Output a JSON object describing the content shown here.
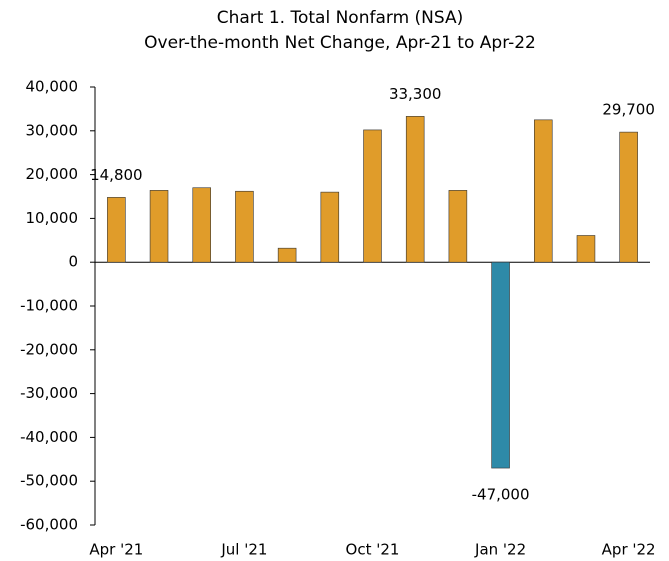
{
  "chart_data": {
    "type": "bar",
    "title": "Chart 1. Total Nonfarm (NSA)",
    "subtitle": "Over-the-month Net Change, Apr-21 to Apr-22",
    "categories": [
      "Apr '21",
      null,
      null,
      "Jul '21",
      null,
      null,
      "Oct '21",
      null,
      null,
      "Jan '22",
      null,
      null,
      "Apr '22"
    ],
    "values": [
      14800,
      16400,
      17000,
      16200,
      3200,
      16000,
      30200,
      33300,
      16400,
      -47000,
      32500,
      6100,
      29700
    ],
    "value_labels": [
      "14,800",
      null,
      null,
      null,
      null,
      null,
      null,
      "33,300",
      null,
      "-47,000",
      null,
      null,
      "29,700"
    ],
    "colors": [
      "#e09c2a",
      "#e09c2a",
      "#e09c2a",
      "#e09c2a",
      "#e09c2a",
      "#e09c2a",
      "#e09c2a",
      "#e09c2a",
      "#e09c2a",
      "#2e8aa8",
      "#e09c2a",
      "#e09c2a",
      "#e09c2a"
    ],
    "ylim": [
      -60000,
      40000
    ],
    "yticks": [
      {
        "value": 40000,
        "label": "40,000"
      },
      {
        "value": 30000,
        "label": "30,000"
      },
      {
        "value": 20000,
        "label": "20,000"
      },
      {
        "value": 10000,
        "label": "10,000"
      },
      0,
      {
        "value": -10000,
        "label": "-10,000"
      },
      {
        "value": -20000,
        "label": "-20,000"
      },
      {
        "value": -30000,
        "label": "-30,000"
      },
      {
        "value": -40000,
        "label": "-40,000"
      },
      {
        "value": -50000,
        "label": "-50,000"
      },
      {
        "value": -60000,
        "label": "-60,000"
      }
    ],
    "grid": false
  }
}
